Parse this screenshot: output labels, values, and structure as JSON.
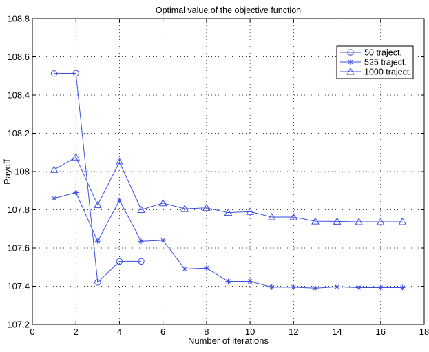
{
  "chart_data": {
    "type": "line",
    "title": "Optimal value of the objective function",
    "xlabel": "Number of iterations",
    "ylabel": "Payoff",
    "xlim": [
      0,
      18
    ],
    "ylim": [
      107.2,
      108.8
    ],
    "x_ticks": [
      0,
      2,
      4,
      6,
      8,
      10,
      12,
      14,
      16,
      18
    ],
    "x_tick_labels": [
      "0",
      "2",
      "4",
      "6",
      "8",
      "10",
      "12",
      "14",
      "16",
      "18"
    ],
    "y_ticks": [
      107.2,
      107.4,
      107.6,
      107.8,
      108,
      108.2,
      108.4,
      108.6,
      108.8
    ],
    "y_tick_labels": [
      "107.2",
      "107.4",
      "107.6",
      "107.8",
      "108",
      "108.2",
      "108.4",
      "108.6",
      "108.8"
    ],
    "grid": true,
    "legend_position": "top-right",
    "line_color": "#3a4fe0",
    "series": [
      {
        "name": "50 traject.",
        "marker": "circle",
        "x": [
          1,
          2,
          3,
          4,
          5
        ],
        "y": [
          108.513,
          108.514,
          107.42,
          107.53,
          107.53
        ]
      },
      {
        "name": "525 traject.",
        "marker": "star",
        "x": [
          1,
          2,
          3,
          4,
          5,
          6,
          7,
          8,
          9,
          10,
          11,
          12,
          13,
          14,
          15,
          16,
          17
        ],
        "y": [
          107.86,
          107.89,
          107.635,
          107.85,
          107.635,
          107.64,
          107.49,
          107.495,
          107.425,
          107.425,
          107.395,
          107.395,
          107.39,
          107.397,
          107.393,
          107.393,
          107.393
        ]
      },
      {
        "name": "1000 traject.",
        "marker": "triangle",
        "x": [
          1,
          2,
          3,
          4,
          5,
          6,
          7,
          8,
          9,
          10,
          11,
          12,
          13,
          14,
          15,
          16,
          17
        ],
        "y": [
          108.01,
          108.075,
          107.825,
          108.05,
          107.8,
          107.835,
          107.805,
          107.81,
          107.785,
          107.79,
          107.762,
          107.762,
          107.74,
          107.739,
          107.737,
          107.737,
          107.737
        ]
      }
    ]
  }
}
